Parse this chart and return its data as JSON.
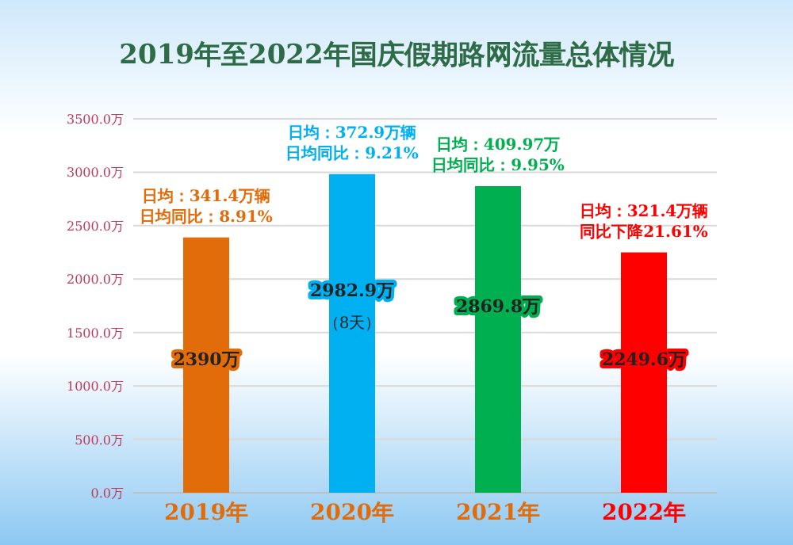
{
  "chart_data": {
    "type": "bar",
    "title": "2019年至2022年国庆假期路网流量总体情况",
    "categories": [
      "2019年",
      "2020年",
      "2021年",
      "2022年"
    ],
    "values": [
      2390,
      2982.9,
      2869.8,
      2249.6
    ],
    "colors": [
      "#e36c0a",
      "#00b0f0",
      "#00b050",
      "#ff0000"
    ],
    "value_labels": [
      "2390万",
      "2982.9万（8天）",
      "2869.8万",
      "2249.6万"
    ],
    "ylim": [
      0,
      3500
    ],
    "yticks": [
      {
        "value": 0,
        "label": "0.0万"
      },
      {
        "value": 500,
        "label": "500.0万"
      },
      {
        "value": 1000,
        "label": "1000.0万"
      },
      {
        "value": 1500,
        "label": "1500.0万"
      },
      {
        "value": 2000,
        "label": "2000.0万"
      },
      {
        "value": 2500,
        "label": "2500.0万"
      },
      {
        "value": 3000,
        "label": "3000.0万"
      },
      {
        "value": 3500,
        "label": "3500.0万"
      }
    ],
    "grid": "y",
    "annotations": [
      {
        "text": "日均：341.4万辆",
        "x": "2019年",
        "y": 2390
      },
      {
        "text": "日均同比：8.91%",
        "x": "2019年",
        "y": 2390
      },
      {
        "text": "日均：372.9万辆",
        "x": "2020年",
        "y": 2982.9
      },
      {
        "text": "日均同比：9.21%",
        "x": "2020年",
        "y": 2982.9
      },
      {
        "text": "日均：409.97万",
        "x": "2021年",
        "y": 2869.8
      },
      {
        "text": "日均同比：9.95%",
        "x": "2021年",
        "y": 2869.8
      },
      {
        "text": "日均：321.4万辆",
        "x": "2022年",
        "y": 2249.6
      },
      {
        "text": "同比下降21.61%",
        "x": "2022年",
        "y": 2249.6
      }
    ]
  }
}
